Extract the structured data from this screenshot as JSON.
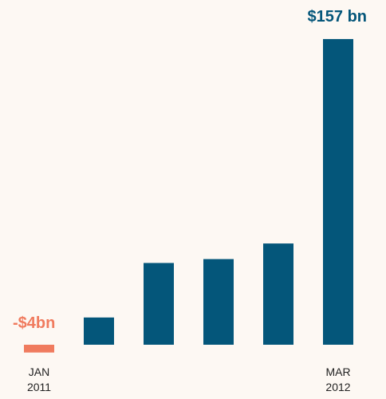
{
  "chart_data": {
    "type": "bar",
    "categories": [
      "JAN 2011",
      "",
      "",
      "",
      "",
      "MAR 2012"
    ],
    "tick_labels": [
      {
        "line1": "JAN",
        "line2": "2011"
      },
      {
        "line1": "",
        "line2": ""
      },
      {
        "line1": "",
        "line2": ""
      },
      {
        "line1": "",
        "line2": ""
      },
      {
        "line1": "",
        "line2": ""
      },
      {
        "line1": "MAR",
        "line2": "2012"
      }
    ],
    "values": [
      -4,
      14,
      42,
      44,
      52,
      157
    ],
    "ylim": [
      -4,
      157
    ],
    "grid": false,
    "annotations": {
      "first": "-$4bn",
      "last": "$157 bn"
    },
    "colors": {
      "positive": "#04567a",
      "negative": "#f07b5e",
      "background": "#fdf8f3"
    }
  }
}
